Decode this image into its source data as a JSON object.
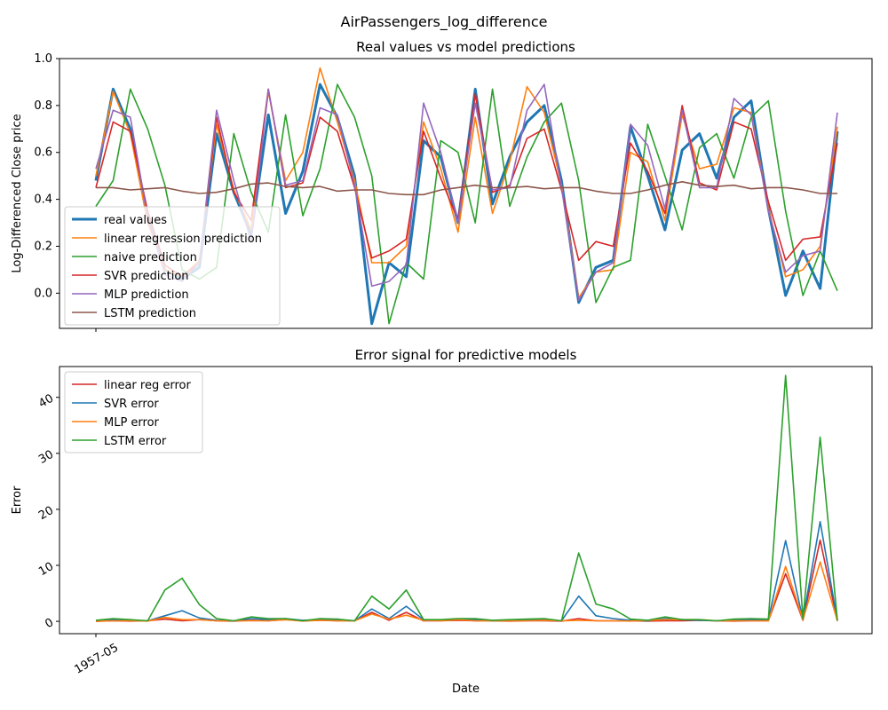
{
  "suptitle": "AirPassengers_log_difference",
  "chart_data": [
    {
      "type": "line",
      "title": "Real values vs model predictions",
      "xlabel": "",
      "ylabel": "Log-Differenced Close price",
      "ylim": [
        -0.15,
        1.0
      ],
      "yticks": [
        "0.0",
        "0.2",
        "0.4",
        "0.6",
        "0.8",
        "1.0"
      ],
      "xtick_labels": [],
      "legend_position": "lower-left",
      "grid": false,
      "series": [
        {
          "name": "real values",
          "color": "#1f77b4",
          "width": 3,
          "values": [
            0.48,
            0.87,
            0.7,
            0.32,
            0.1,
            0.06,
            0.11,
            0.68,
            0.43,
            0.25,
            0.76,
            0.34,
            0.52,
            0.89,
            0.75,
            0.5,
            -0.13,
            0.13,
            0.07,
            0.65,
            0.58,
            0.3,
            0.87,
            0.38,
            0.58,
            0.73,
            0.8,
            0.48,
            -0.04,
            0.11,
            0.14,
            0.71,
            0.5,
            0.27,
            0.61,
            0.68,
            0.49,
            0.75,
            0.82,
            0.36,
            -0.01,
            0.18,
            0.02,
            0.69
          ]
        },
        {
          "name": "linear regression prediction",
          "color": "#ff7f0e",
          "width": 1.6,
          "values": [
            0.5,
            0.86,
            0.68,
            0.3,
            0.1,
            0.07,
            0.14,
            0.72,
            0.44,
            0.27,
            0.86,
            0.48,
            0.6,
            0.96,
            0.73,
            0.48,
            0.13,
            0.13,
            0.2,
            0.73,
            0.53,
            0.26,
            0.75,
            0.34,
            0.56,
            0.88,
            0.77,
            0.46,
            -0.02,
            0.09,
            0.1,
            0.6,
            0.56,
            0.31,
            0.76,
            0.53,
            0.55,
            0.79,
            0.77,
            0.36,
            0.07,
            0.1,
            0.2,
            0.71
          ]
        },
        {
          "name": "naive prediction",
          "color": "#2ca02c",
          "width": 1.6,
          "values": [
            0.37,
            0.48,
            0.87,
            0.7,
            0.46,
            0.1,
            0.06,
            0.11,
            0.68,
            0.43,
            0.26,
            0.76,
            0.33,
            0.53,
            0.89,
            0.75,
            0.5,
            -0.13,
            0.13,
            0.06,
            0.65,
            0.6,
            0.3,
            0.87,
            0.37,
            0.58,
            0.73,
            0.81,
            0.48,
            -0.04,
            0.11,
            0.14,
            0.72,
            0.5,
            0.27,
            0.62,
            0.68,
            0.49,
            0.75,
            0.82,
            0.35,
            -0.01,
            0.18,
            0.01
          ]
        },
        {
          "name": "SVR prediction",
          "color": "#d62728",
          "width": 1.6,
          "values": [
            0.45,
            0.73,
            0.69,
            0.35,
            0.12,
            0.07,
            0.13,
            0.75,
            0.43,
            0.31,
            0.87,
            0.45,
            0.47,
            0.75,
            0.69,
            0.45,
            0.15,
            0.18,
            0.23,
            0.69,
            0.49,
            0.31,
            0.85,
            0.43,
            0.46,
            0.66,
            0.7,
            0.44,
            0.14,
            0.22,
            0.2,
            0.64,
            0.52,
            0.34,
            0.8,
            0.47,
            0.44,
            0.73,
            0.7,
            0.39,
            0.14,
            0.23,
            0.24,
            0.64
          ]
        },
        {
          "name": "MLP prediction",
          "color": "#9467bd",
          "width": 1.6,
          "values": [
            0.53,
            0.78,
            0.75,
            0.32,
            0.08,
            0.05,
            0.13,
            0.78,
            0.48,
            0.22,
            0.87,
            0.46,
            0.48,
            0.79,
            0.76,
            0.46,
            0.03,
            0.05,
            0.12,
            0.81,
            0.6,
            0.3,
            0.81,
            0.44,
            0.45,
            0.78,
            0.89,
            0.45,
            -0.03,
            0.09,
            0.13,
            0.72,
            0.63,
            0.36,
            0.78,
            0.45,
            0.45,
            0.83,
            0.76,
            0.35,
            0.09,
            0.16,
            0.18,
            0.77
          ]
        },
        {
          "name": "LSTM prediction",
          "color": "#8c564b",
          "width": 1.6,
          "values": [
            0.45,
            0.45,
            0.44,
            0.445,
            0.45,
            0.435,
            0.425,
            0.43,
            0.445,
            0.465,
            0.47,
            0.455,
            0.45,
            0.455,
            0.435,
            0.44,
            0.44,
            0.425,
            0.42,
            0.42,
            0.44,
            0.45,
            0.46,
            0.45,
            0.45,
            0.455,
            0.445,
            0.45,
            0.45,
            0.435,
            0.425,
            0.425,
            0.44,
            0.46,
            0.475,
            0.46,
            0.455,
            0.46,
            0.445,
            0.45,
            0.45,
            0.44,
            0.425,
            0.425
          ]
        }
      ]
    },
    {
      "type": "line",
      "title": "Error signal for predictive models",
      "xlabel": "Date",
      "ylabel": "Error",
      "ylim": [
        -2.2,
        45.5
      ],
      "yticks": [
        "0",
        "10",
        "20",
        "30",
        "40"
      ],
      "xtick_labels": [
        "1957-05"
      ],
      "legend_position": "upper-left",
      "grid": false,
      "series": [
        {
          "name": "linear reg error",
          "color": "#d62728",
          "width": 1.6,
          "values": [
            0.0,
            0.1,
            0.05,
            0.1,
            0.4,
            0.1,
            0.3,
            0.1,
            0.05,
            0.2,
            0.1,
            0.3,
            0.1,
            0.2,
            0.1,
            0.1,
            1.6,
            0.2,
            1.6,
            0.1,
            0.1,
            0.2,
            0.1,
            0.1,
            0.05,
            0.1,
            0.1,
            0.05,
            0.5,
            0.1,
            0.1,
            0.1,
            0.05,
            0.1,
            0.1,
            0.2,
            0.1,
            0.05,
            0.1,
            0.1,
            8.5,
            0.2,
            14.5,
            0.05
          ]
        },
        {
          "name": "SVR error",
          "color": "#1f77b4",
          "width": 1.6,
          "values": [
            0.1,
            0.3,
            0.2,
            0.1,
            1.0,
            1.9,
            0.6,
            0.2,
            0.1,
            0.5,
            0.3,
            0.5,
            0.2,
            0.3,
            0.3,
            0.1,
            2.2,
            0.5,
            2.7,
            0.3,
            0.2,
            0.3,
            0.3,
            0.1,
            0.2,
            0.2,
            0.3,
            0.1,
            4.5,
            1.0,
            0.5,
            0.2,
            0.1,
            0.5,
            0.3,
            0.2,
            0.1,
            0.2,
            0.3,
            0.3,
            14.4,
            0.3,
            17.8,
            0.1
          ]
        },
        {
          "name": "MLP error",
          "color": "#ff7f0e",
          "width": 1.6,
          "values": [
            0.05,
            0.1,
            0.1,
            0.05,
            0.7,
            0.3,
            0.3,
            0.1,
            0.1,
            0.1,
            0.1,
            0.3,
            0.05,
            0.2,
            0.1,
            0.1,
            1.3,
            0.4,
            1.1,
            0.2,
            0.1,
            0.3,
            0.1,
            0.1,
            0.1,
            0.1,
            0.2,
            0.1,
            0.2,
            0.1,
            0.1,
            0.05,
            0.2,
            0.3,
            0.3,
            0.3,
            0.1,
            0.1,
            0.1,
            0.1,
            9.8,
            0.3,
            10.6,
            0.1
          ]
        },
        {
          "name": "LSTM error",
          "color": "#2ca02c",
          "width": 1.6,
          "values": [
            0.2,
            0.5,
            0.3,
            0.1,
            5.6,
            7.7,
            3.0,
            0.5,
            0.1,
            0.8,
            0.5,
            0.5,
            0.1,
            0.5,
            0.4,
            0.1,
            4.5,
            2.2,
            5.6,
            0.3,
            0.3,
            0.5,
            0.5,
            0.2,
            0.3,
            0.4,
            0.5,
            0.1,
            12.2,
            3.1,
            2.2,
            0.4,
            0.2,
            0.8,
            0.3,
            0.3,
            0.1,
            0.4,
            0.5,
            0.4,
            43.9,
            0.5,
            32.9,
            0.2
          ]
        }
      ]
    }
  ]
}
